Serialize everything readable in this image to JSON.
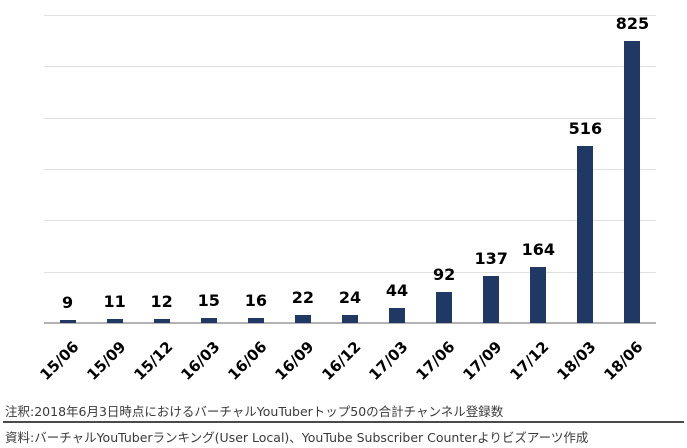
{
  "chart_data": {
    "type": "bar",
    "categories": [
      "15/06",
      "15/09",
      "15/12",
      "16/03",
      "16/06",
      "16/09",
      "16/12",
      "17/03",
      "17/06",
      "17/09",
      "17/12",
      "18/03",
      "18/06"
    ],
    "values": [
      9,
      11,
      12,
      15,
      16,
      22,
      24,
      44,
      92,
      137,
      164,
      516,
      825
    ],
    "title": "",
    "xlabel": "",
    "ylabel": "",
    "ylim": [
      0,
      900
    ],
    "gridline_step": 150,
    "grid": "horizontal",
    "y_tick_labels_visible": false,
    "legend_position": "none",
    "bar_color": "#1f3864",
    "value_label_position": "outside-end",
    "x_tick_rotation_deg": 45
  },
  "notes": {
    "annotation": "注釈:2018年6月3日時点におけるバーチャルYouTuberトップ50の合計チャンネル登録数",
    "source": "資料:バーチャルYouTuberランキング(User Local)、YouTube Subscriber Counterよりビズアーツ作成"
  },
  "colors": {
    "bar": "#1f3864",
    "gridline": "#e0e0e0",
    "axis_line": "#b3b3b3",
    "label_text": "#000000",
    "note_text": "#3a3a3a",
    "divider": "#4a4a4a",
    "background": "#ffffff"
  }
}
